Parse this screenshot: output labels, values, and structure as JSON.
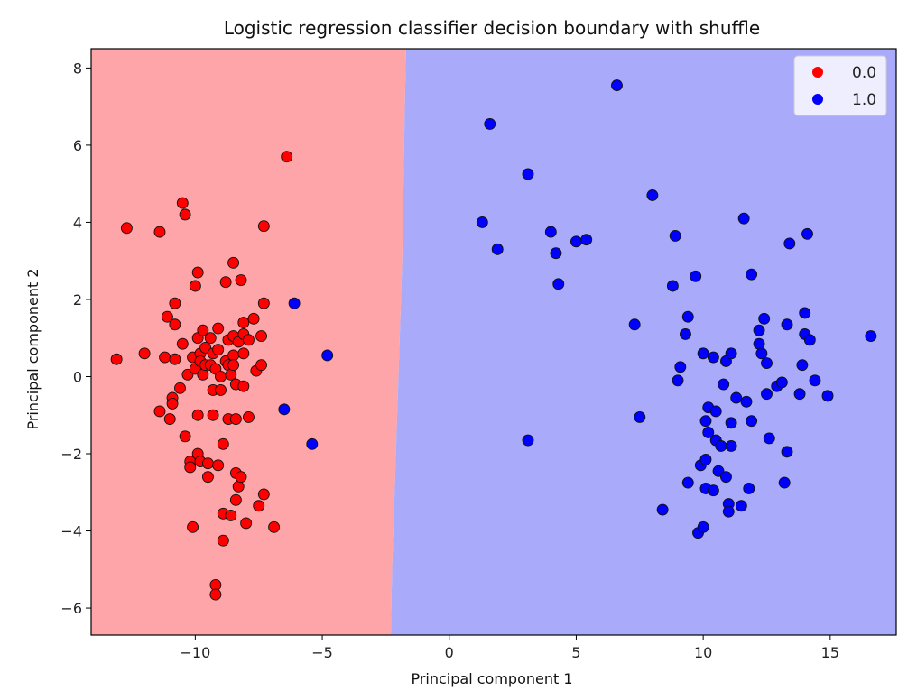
{
  "chart_data": {
    "type": "scatter",
    "title": "Logistic regression classifier decision boundary with shuffle",
    "xlabel": "Principal component 1",
    "ylabel": "Principal component 2",
    "xlim": [
      -14.1,
      17.6
    ],
    "ylim": [
      -6.7,
      8.5
    ],
    "x_ticks": [
      -10,
      -5,
      0,
      5,
      10,
      15
    ],
    "x_tick_labels": [
      "−10",
      "−5",
      "0",
      "5",
      "10",
      "15"
    ],
    "y_ticks": [
      -6,
      -4,
      -2,
      0,
      2,
      4,
      6,
      8
    ],
    "y_tick_labels": [
      "−6",
      "−4",
      "−2",
      "0",
      "2",
      "4",
      "6",
      "8"
    ],
    "grid": false,
    "legend_position": "top-right",
    "decision_boundary": [
      [
        -2.3,
        -6.7
      ],
      [
        -2.25,
        -5.0
      ],
      [
        -2.15,
        -3.0
      ],
      [
        -2.05,
        -1.0
      ],
      [
        -1.95,
        1.0
      ],
      [
        -1.85,
        3.0
      ],
      [
        -1.8,
        5.0
      ],
      [
        -1.75,
        7.0
      ],
      [
        -1.7,
        8.5
      ]
    ],
    "region_colors": {
      "0.0": "#fda5a9",
      "1.0": "#aaaafa"
    },
    "series": [
      {
        "name": "0.0",
        "color": "#ff0000",
        "points": [
          [
            -13.1,
            0.45
          ],
          [
            -12.7,
            3.85
          ],
          [
            -12.0,
            0.6
          ],
          [
            -11.4,
            3.75
          ],
          [
            -11.4,
            -0.9
          ],
          [
            -11.2,
            0.5
          ],
          [
            -11.1,
            1.55
          ],
          [
            -11.0,
            -1.1
          ],
          [
            -10.9,
            -0.55
          ],
          [
            -10.9,
            -0.7
          ],
          [
            -10.8,
            0.45
          ],
          [
            -10.8,
            1.9
          ],
          [
            -10.8,
            1.35
          ],
          [
            -10.6,
            -0.3
          ],
          [
            -10.5,
            4.5
          ],
          [
            -10.5,
            0.85
          ],
          [
            -10.4,
            4.2
          ],
          [
            -10.4,
            -1.55
          ],
          [
            -10.3,
            0.05
          ],
          [
            -10.2,
            -2.2
          ],
          [
            -10.2,
            -2.35
          ],
          [
            -10.1,
            -3.9
          ],
          [
            -10.1,
            0.5
          ],
          [
            -10.0,
            2.35
          ],
          [
            -10.0,
            0.2
          ],
          [
            -9.9,
            2.7
          ],
          [
            -9.9,
            1.0
          ],
          [
            -9.9,
            -1.0
          ],
          [
            -9.9,
            -2.0
          ],
          [
            -9.8,
            0.6
          ],
          [
            -9.8,
            0.4
          ],
          [
            -9.8,
            -2.2
          ],
          [
            -9.7,
            1.2
          ],
          [
            -9.7,
            0.05
          ],
          [
            -9.6,
            0.75
          ],
          [
            -9.6,
            0.3
          ],
          [
            -9.5,
            -2.6
          ],
          [
            -9.5,
            -2.25
          ],
          [
            -9.4,
            1.0
          ],
          [
            -9.4,
            0.3
          ],
          [
            -9.3,
            0.6
          ],
          [
            -9.3,
            -0.35
          ],
          [
            -9.3,
            -1.0
          ],
          [
            -9.2,
            -5.4
          ],
          [
            -9.2,
            -5.65
          ],
          [
            -9.2,
            0.2
          ],
          [
            -9.1,
            1.25
          ],
          [
            -9.1,
            0.7
          ],
          [
            -9.1,
            -2.3
          ],
          [
            -9.0,
            0.0
          ],
          [
            -9.0,
            -0.35
          ],
          [
            -8.9,
            -3.55
          ],
          [
            -8.9,
            -4.25
          ],
          [
            -8.9,
            -1.75
          ],
          [
            -8.8,
            2.45
          ],
          [
            -8.8,
            0.4
          ],
          [
            -8.7,
            0.95
          ],
          [
            -8.7,
            0.3
          ],
          [
            -8.7,
            -1.1
          ],
          [
            -8.6,
            0.05
          ],
          [
            -8.6,
            -3.6
          ],
          [
            -8.5,
            2.95
          ],
          [
            -8.5,
            1.05
          ],
          [
            -8.5,
            0.55
          ],
          [
            -8.5,
            0.3
          ],
          [
            -8.4,
            -0.2
          ],
          [
            -8.4,
            -1.1
          ],
          [
            -8.4,
            -2.5
          ],
          [
            -8.4,
            -3.2
          ],
          [
            -8.3,
            0.9
          ],
          [
            -8.3,
            -2.85
          ],
          [
            -8.2,
            2.5
          ],
          [
            -8.2,
            -2.6
          ],
          [
            -8.1,
            1.1
          ],
          [
            -8.1,
            1.4
          ],
          [
            -8.1,
            0.6
          ],
          [
            -8.1,
            -0.25
          ],
          [
            -8.0,
            -3.8
          ],
          [
            -7.9,
            -1.05
          ],
          [
            -7.9,
            0.95
          ],
          [
            -7.7,
            1.5
          ],
          [
            -7.6,
            0.15
          ],
          [
            -7.5,
            -3.35
          ],
          [
            -7.4,
            1.05
          ],
          [
            -7.4,
            0.3
          ],
          [
            -7.3,
            3.9
          ],
          [
            -7.3,
            1.9
          ],
          [
            -7.3,
            -3.05
          ],
          [
            -6.9,
            -3.9
          ],
          [
            -6.4,
            5.7
          ]
        ]
      },
      {
        "name": "1.0",
        "color": "#0000ff",
        "points": [
          [
            -6.1,
            1.9
          ],
          [
            -6.5,
            -0.85
          ],
          [
            -5.4,
            -1.75
          ],
          [
            -4.8,
            0.55
          ],
          [
            1.3,
            4.0
          ],
          [
            1.6,
            6.55
          ],
          [
            1.9,
            3.3
          ],
          [
            3.1,
            5.25
          ],
          [
            3.1,
            -1.65
          ],
          [
            4.0,
            3.75
          ],
          [
            4.2,
            3.2
          ],
          [
            4.3,
            2.4
          ],
          [
            5.0,
            3.5
          ],
          [
            5.4,
            3.55
          ],
          [
            6.6,
            7.55
          ],
          [
            7.3,
            1.35
          ],
          [
            7.5,
            -1.05
          ],
          [
            8.0,
            4.7
          ],
          [
            8.4,
            -3.45
          ],
          [
            8.8,
            2.35
          ],
          [
            8.9,
            3.65
          ],
          [
            9.0,
            -0.1
          ],
          [
            9.1,
            0.25
          ],
          [
            9.3,
            1.1
          ],
          [
            9.4,
            1.55
          ],
          [
            9.4,
            -2.75
          ],
          [
            9.7,
            2.6
          ],
          [
            9.8,
            -4.05
          ],
          [
            9.9,
            -2.3
          ],
          [
            10.0,
            -3.9
          ],
          [
            10.0,
            0.6
          ],
          [
            10.1,
            -1.15
          ],
          [
            10.1,
            -2.15
          ],
          [
            10.1,
            -2.9
          ],
          [
            10.2,
            -1.45
          ],
          [
            10.2,
            -0.8
          ],
          [
            10.4,
            -2.95
          ],
          [
            10.4,
            0.5
          ],
          [
            10.5,
            -0.9
          ],
          [
            10.5,
            -1.65
          ],
          [
            10.6,
            -2.45
          ],
          [
            10.7,
            -1.8
          ],
          [
            10.8,
            -0.2
          ],
          [
            10.9,
            0.4
          ],
          [
            10.9,
            -2.6
          ],
          [
            11.0,
            -3.3
          ],
          [
            11.0,
            -3.5
          ],
          [
            11.1,
            0.6
          ],
          [
            11.1,
            -1.2
          ],
          [
            11.1,
            -1.8
          ],
          [
            11.3,
            -0.55
          ],
          [
            11.5,
            -3.35
          ],
          [
            11.6,
            4.1
          ],
          [
            11.7,
            -0.65
          ],
          [
            11.8,
            -2.9
          ],
          [
            11.9,
            2.65
          ],
          [
            11.9,
            -1.15
          ],
          [
            12.2,
            0.85
          ],
          [
            12.2,
            1.2
          ],
          [
            12.3,
            0.6
          ],
          [
            12.4,
            1.5
          ],
          [
            12.5,
            0.35
          ],
          [
            12.5,
            -0.45
          ],
          [
            12.6,
            -1.6
          ],
          [
            12.9,
            -0.25
          ],
          [
            13.1,
            -0.15
          ],
          [
            13.2,
            -2.75
          ],
          [
            13.3,
            1.35
          ],
          [
            13.3,
            -1.95
          ],
          [
            13.4,
            3.45
          ],
          [
            13.8,
            -0.45
          ],
          [
            13.9,
            0.3
          ],
          [
            14.0,
            1.65
          ],
          [
            14.0,
            1.1
          ],
          [
            14.1,
            3.7
          ],
          [
            14.2,
            0.95
          ],
          [
            14.4,
            -0.1
          ],
          [
            14.9,
            -0.5
          ],
          [
            16.6,
            1.05
          ]
        ]
      }
    ]
  }
}
